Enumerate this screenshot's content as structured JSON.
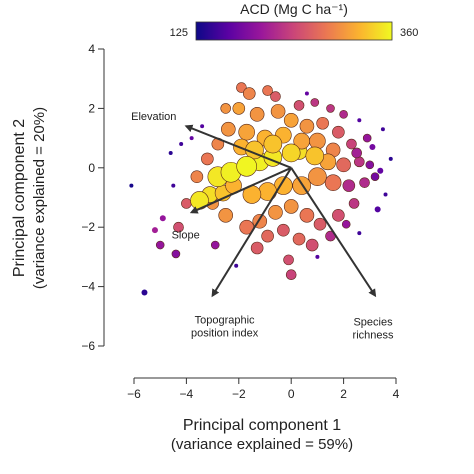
{
  "chart_data": {
    "type": "scatter",
    "xlabel": "Principal component 1",
    "xlabel_sub": "(variance explained = 59%)",
    "ylabel": "Principal component 2",
    "ylabel_sub": "(variance explained = 20%)",
    "xlim": [
      -6,
      4
    ],
    "ylim": [
      -6,
      4
    ],
    "x_ticks": [
      -6,
      -4,
      -2,
      0,
      2,
      4
    ],
    "y_ticks": [
      -6,
      -4,
      -2,
      0,
      2,
      4
    ],
    "grid": false,
    "colorbar": {
      "title": "ACD (Mg C ha⁻¹)",
      "min_label": "125",
      "max_label": "360",
      "min": 125,
      "max": 360,
      "colormap": "plasma",
      "stops": [
        "#0d0887",
        "#5b02a3",
        "#9a179b",
        "#cb4678",
        "#eb7852",
        "#fbb32f",
        "#f0f921"
      ]
    },
    "vectors": [
      {
        "label": "Elevation",
        "lines": [
          "Elevation"
        ],
        "x": -4.0,
        "y": 1.4
      },
      {
        "label": "Slope",
        "lines": [
          "Slope"
        ],
        "x": -3.8,
        "y": -1.5
      },
      {
        "label": "Topographic position index",
        "lines": [
          "Topographic",
          "position index"
        ],
        "x": -3.0,
        "y": -4.3
      },
      {
        "label": "Species richness",
        "lines": [
          "Species",
          "richness"
        ],
        "x": 3.2,
        "y": -4.3
      }
    ],
    "points": [
      {
        "x": -2.8,
        "y": -0.3,
        "acd": 350,
        "r": 10
      },
      {
        "x": -2.3,
        "y": -0.15,
        "acd": 355,
        "r": 10
      },
      {
        "x": -1.7,
        "y": 0.05,
        "acd": 358,
        "r": 10
      },
      {
        "x": -1.2,
        "y": 0.2,
        "acd": 355,
        "r": 9
      },
      {
        "x": -0.7,
        "y": 0.35,
        "acd": 350,
        "r": 9
      },
      {
        "x": 0.3,
        "y": 0.55,
        "acd": 345,
        "r": 8
      },
      {
        "x": -3.5,
        "y": -1.1,
        "acd": 350,
        "r": 9
      },
      {
        "x": -3.1,
        "y": -0.9,
        "acd": 345,
        "r": 8
      },
      {
        "x": -2.6,
        "y": -0.85,
        "acd": 330,
        "r": 8
      },
      {
        "x": -2.2,
        "y": -0.6,
        "acd": 320,
        "r": 8
      },
      {
        "x": -3.0,
        "y": -1.2,
        "acd": 300,
        "r": 6
      },
      {
        "x": -2.0,
        "y": 2.0,
        "acd": 310,
        "r": 6
      },
      {
        "x": -1.6,
        "y": 2.5,
        "acd": 290,
        "r": 6
      },
      {
        "x": -0.9,
        "y": 2.6,
        "acd": 280,
        "r": 5
      },
      {
        "x": -1.3,
        "y": 1.8,
        "acd": 300,
        "r": 7
      },
      {
        "x": -0.5,
        "y": 1.9,
        "acd": 300,
        "r": 7
      },
      {
        "x": 0.0,
        "y": 1.6,
        "acd": 310,
        "r": 7
      },
      {
        "x": 0.6,
        "y": 1.4,
        "acd": 300,
        "r": 7
      },
      {
        "x": 1.2,
        "y": 1.5,
        "acd": 280,
        "r": 6
      },
      {
        "x": 1.8,
        "y": 1.2,
        "acd": 260,
        "r": 6
      },
      {
        "x": 2.3,
        "y": 0.8,
        "acd": 240,
        "r": 5
      },
      {
        "x": 2.6,
        "y": 0.2,
        "acd": 230,
        "r": 5
      },
      {
        "x": 2.8,
        "y": -0.5,
        "acd": 220,
        "r": 5
      },
      {
        "x": 2.4,
        "y": -1.2,
        "acd": 230,
        "r": 5
      },
      {
        "x": 1.8,
        "y": -1.6,
        "acd": 250,
        "r": 6
      },
      {
        "x": 1.1,
        "y": -1.9,
        "acd": 260,
        "r": 6
      },
      {
        "x": 0.6,
        "y": -1.6,
        "acd": 280,
        "r": 7
      },
      {
        "x": 0.0,
        "y": -1.3,
        "acd": 300,
        "r": 7
      },
      {
        "x": -0.6,
        "y": -1.5,
        "acd": 300,
        "r": 7
      },
      {
        "x": -1.2,
        "y": -1.8,
        "acd": 290,
        "r": 7
      },
      {
        "x": -1.7,
        "y": -2.0,
        "acd": 280,
        "r": 7
      },
      {
        "x": -2.5,
        "y": -1.6,
        "acd": 300,
        "r": 7
      },
      {
        "x": -0.9,
        "y": -2.3,
        "acd": 270,
        "r": 6
      },
      {
        "x": -0.3,
        "y": -2.1,
        "acd": 260,
        "r": 6
      },
      {
        "x": 0.3,
        "y": -2.4,
        "acd": 270,
        "r": 6
      },
      {
        "x": 0.8,
        "y": -2.6,
        "acd": 250,
        "r": 6
      },
      {
        "x": -0.1,
        "y": -3.1,
        "acd": 250,
        "r": 5
      },
      {
        "x": 0.0,
        "y": -3.6,
        "acd": 240,
        "r": 5
      },
      {
        "x": -1.3,
        "y": -2.7,
        "acd": 260,
        "r": 6
      },
      {
        "x": -1.7,
        "y": 1.2,
        "acd": 310,
        "r": 8
      },
      {
        "x": -1.0,
        "y": 1.0,
        "acd": 320,
        "r": 8
      },
      {
        "x": -0.3,
        "y": 1.1,
        "acd": 320,
        "r": 8
      },
      {
        "x": 0.4,
        "y": 0.9,
        "acd": 310,
        "r": 8
      },
      {
        "x": 1.0,
        "y": 0.9,
        "acd": 300,
        "r": 8
      },
      {
        "x": 1.6,
        "y": 0.6,
        "acd": 290,
        "r": 7
      },
      {
        "x": 2.0,
        "y": 0.1,
        "acd": 270,
        "r": 7
      },
      {
        "x": 1.6,
        "y": -0.5,
        "acd": 280,
        "r": 8
      },
      {
        "x": 1.0,
        "y": -0.3,
        "acd": 300,
        "r": 9
      },
      {
        "x": 0.9,
        "y": 0.4,
        "acd": 330,
        "r": 9
      },
      {
        "x": 1.4,
        "y": 0.2,
        "acd": 310,
        "r": 8
      },
      {
        "x": 0.4,
        "y": -0.6,
        "acd": 310,
        "r": 9
      },
      {
        "x": -0.3,
        "y": -0.6,
        "acd": 320,
        "r": 9
      },
      {
        "x": -0.9,
        "y": -0.8,
        "acd": 320,
        "r": 9
      },
      {
        "x": -1.5,
        "y": -0.9,
        "acd": 320,
        "r": 9
      },
      {
        "x": -1.9,
        "y": 0.7,
        "acd": 320,
        "r": 8
      },
      {
        "x": -1.4,
        "y": 0.6,
        "acd": 330,
        "r": 9
      },
      {
        "x": -0.7,
        "y": 0.8,
        "acd": 330,
        "r": 9
      },
      {
        "x": 0.0,
        "y": 0.5,
        "acd": 340,
        "r": 9
      },
      {
        "x": -2.4,
        "y": 1.3,
        "acd": 300,
        "r": 7
      },
      {
        "x": -2.8,
        "y": 0.8,
        "acd": 290,
        "r": 6
      },
      {
        "x": -3.2,
        "y": 0.3,
        "acd": 280,
        "r": 6
      },
      {
        "x": -3.6,
        "y": -0.3,
        "acd": 290,
        "r": 6
      },
      {
        "x": -4.0,
        "y": -1.2,
        "acd": 260,
        "r": 5
      },
      {
        "x": -4.3,
        "y": -2.0,
        "acd": 250,
        "r": 5
      },
      {
        "x": 2.2,
        "y": -0.6,
        "acd": 220,
        "r": 6
      },
      {
        "x": 2.5,
        "y": 0.5,
        "acd": 210,
        "r": 5
      },
      {
        "x": 3.0,
        "y": 0.1,
        "acd": 190,
        "r": 4
      },
      {
        "x": 3.2,
        "y": -0.3,
        "acd": 180,
        "r": 4
      },
      {
        "x": 2.9,
        "y": 1.0,
        "acd": 200,
        "r": 4
      },
      {
        "x": 2.0,
        "y": 1.8,
        "acd": 220,
        "r": 4
      },
      {
        "x": 1.5,
        "y": 2.0,
        "acd": 230,
        "r": 4
      },
      {
        "x": 2.1,
        "y": -1.9,
        "acd": 200,
        "r": 4
      },
      {
        "x": 1.5,
        "y": -2.3,
        "acd": 220,
        "r": 5
      },
      {
        "x": -0.6,
        "y": 2.4,
        "acd": 260,
        "r": 5
      },
      {
        "x": 0.3,
        "y": 2.1,
        "acd": 250,
        "r": 5
      },
      {
        "x": 0.9,
        "y": 2.2,
        "acd": 230,
        "r": 4
      },
      {
        "x": -2.5,
        "y": 2.0,
        "acd": 300,
        "r": 5
      },
      {
        "x": -1.9,
        "y": 2.7,
        "acd": 280,
        "r": 5
      },
      {
        "x": -4.6,
        "y": 0.5,
        "acd": 140,
        "r": 2
      },
      {
        "x": -6.1,
        "y": -0.6,
        "acd": 130,
        "r": 2
      },
      {
        "x": -5.6,
        "y": -4.2,
        "acd": 140,
        "r": 3
      },
      {
        "x": -4.9,
        "y": -1.7,
        "acd": 200,
        "r": 3
      },
      {
        "x": -5.2,
        "y": -2.1,
        "acd": 210,
        "r": 3
      },
      {
        "x": -5.0,
        "y": -2.6,
        "acd": 200,
        "r": 4
      },
      {
        "x": -4.4,
        "y": -2.9,
        "acd": 190,
        "r": 4
      },
      {
        "x": -4.5,
        "y": -0.6,
        "acd": 150,
        "r": 2
      },
      {
        "x": -4.2,
        "y": 0.8,
        "acd": 150,
        "r": 2
      },
      {
        "x": -3.4,
        "y": 1.4,
        "acd": 160,
        "r": 2
      },
      {
        "x": 3.5,
        "y": 1.3,
        "acd": 150,
        "r": 2
      },
      {
        "x": 3.8,
        "y": 0.3,
        "acd": 140,
        "r": 2
      },
      {
        "x": 3.6,
        "y": -0.9,
        "acd": 150,
        "r": 2
      },
      {
        "x": 3.3,
        "y": -1.4,
        "acd": 160,
        "r": 3
      },
      {
        "x": 2.6,
        "y": -2.2,
        "acd": 150,
        "r": 2
      },
      {
        "x": 1.0,
        "y": -3.0,
        "acd": 160,
        "r": 2
      },
      {
        "x": -2.1,
        "y": -3.3,
        "acd": 150,
        "r": 2
      },
      {
        "x": 0.6,
        "y": 2.5,
        "acd": 170,
        "r": 2
      },
      {
        "x": 2.6,
        "y": 1.6,
        "acd": 160,
        "r": 2
      },
      {
        "x": 3.1,
        "y": 0.7,
        "acd": 180,
        "r": 3
      },
      {
        "x": 3.4,
        "y": -0.1,
        "acd": 170,
        "r": 3
      },
      {
        "x": -3.8,
        "y": 1.0,
        "acd": 170,
        "r": 2
      },
      {
        "x": -2.9,
        "y": -2.6,
        "acd": 200,
        "r": 4
      }
    ]
  }
}
